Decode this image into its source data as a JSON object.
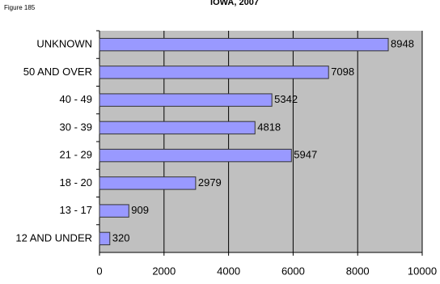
{
  "figure_label": "Figure 185",
  "chart_data": {
    "type": "bar",
    "orientation": "horizontal",
    "title": "IOWA, 2007",
    "categories": [
      "UNKNOWN",
      "50 AND OVER",
      "40 - 49",
      "30 - 39",
      "21 - 29",
      "18 - 20",
      "13 - 17",
      "12 AND UNDER"
    ],
    "values": [
      8948,
      7098,
      5342,
      4818,
      5947,
      2979,
      909,
      320
    ],
    "color": "#9999ff",
    "xlim": [
      0,
      10000
    ],
    "xticks": [
      0,
      2000,
      4000,
      6000,
      8000,
      10000
    ],
    "grid": true
  }
}
